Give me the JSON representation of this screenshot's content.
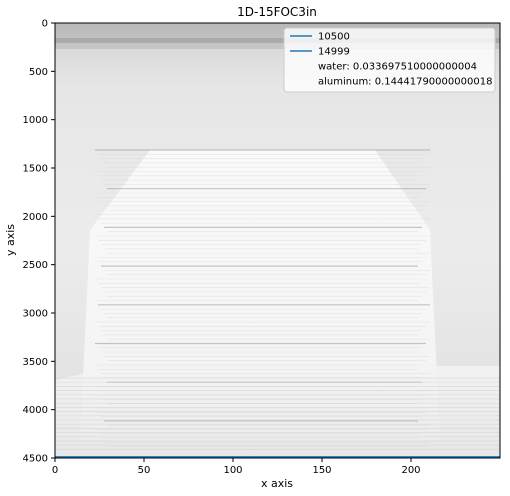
{
  "chart_data": {
    "type": "heatmap",
    "title": "1D-15FOC3in",
    "xlabel": "x axis",
    "ylabel": "y axis",
    "xlim": [
      0,
      250
    ],
    "ylim": [
      4500,
      0
    ],
    "x_ticks": [
      0,
      50,
      100,
      150,
      200
    ],
    "y_ticks": [
      0,
      500,
      1000,
      1500,
      2000,
      2500,
      3000,
      3500,
      4000,
      4500
    ],
    "legend": {
      "placement": "top-right",
      "entries": [
        {
          "label": "10500",
          "color": "#1f77b4",
          "has_line": true
        },
        {
          "label": "14999",
          "color": "#1f77b4",
          "has_line": true
        },
        {
          "label": "water: 0.033697510000000004",
          "has_line": false
        },
        {
          "label": "aluminum: 0.14441790000000018",
          "has_line": false
        }
      ]
    },
    "series": [
      {
        "name": "10500",
        "y": 4500,
        "color": "#1f77b4"
      },
      {
        "name": "14999",
        "y": 4500,
        "color": "#1f77b4"
      }
    ],
    "colormap": "grayscale"
  }
}
